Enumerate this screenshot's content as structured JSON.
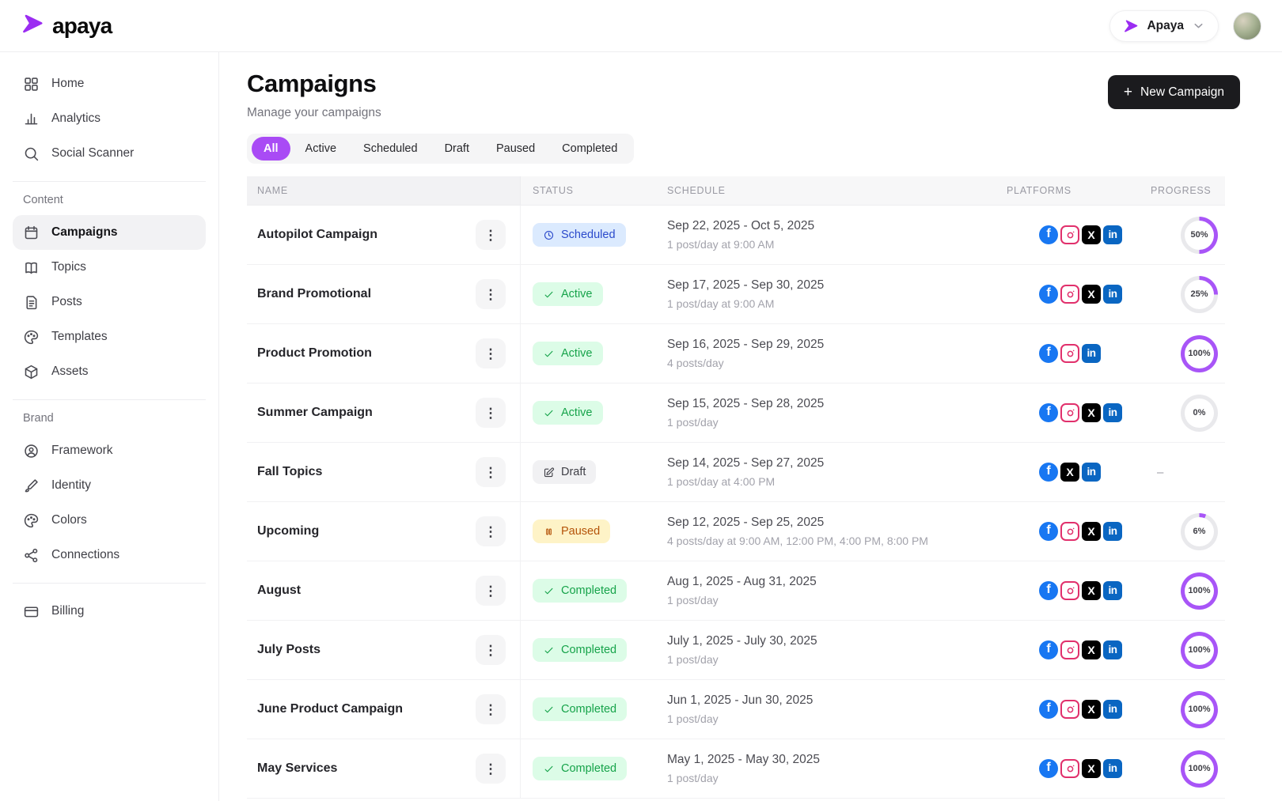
{
  "app": {
    "name": "apaya",
    "logo_color": "#9b2df2",
    "ring_color": "#a855f7",
    "ring_track": "#e9e9ec"
  },
  "topbar": {
    "org": {
      "label": "Apaya"
    }
  },
  "sidebar": {
    "groups": [
      {
        "label": "",
        "items": [
          {
            "icon": "home-icon",
            "label": "Home"
          },
          {
            "icon": "analytics-icon",
            "label": "Analytics"
          },
          {
            "icon": "search-icon",
            "label": "Social Scanner"
          }
        ]
      },
      {
        "label": "Content",
        "items": [
          {
            "icon": "calendar-icon",
            "label": "Campaigns",
            "active": true
          },
          {
            "icon": "book-icon",
            "label": "Topics"
          },
          {
            "icon": "document-icon",
            "label": "Posts"
          },
          {
            "icon": "palette-icon",
            "label": "Templates"
          },
          {
            "icon": "box-icon",
            "label": "Assets"
          }
        ]
      },
      {
        "label": "Brand",
        "items": [
          {
            "icon": "user-circle-icon",
            "label": "Framework"
          },
          {
            "icon": "brush-icon",
            "label": "Identity"
          },
          {
            "icon": "palette-icon",
            "label": "Colors"
          },
          {
            "icon": "share-icon",
            "label": "Connections"
          }
        ]
      },
      {
        "label": "",
        "items": [
          {
            "icon": "credit-card-icon",
            "label": "Billing"
          }
        ]
      }
    ]
  },
  "page": {
    "title": "Campaigns",
    "subtitle": "Manage your campaigns",
    "new_campaign_label": "New Campaign"
  },
  "filters": {
    "tabs": [
      "All",
      "Active",
      "Scheduled",
      "Draft",
      "Paused",
      "Completed"
    ],
    "active": "All",
    "active_bg": "#a94bf5"
  },
  "table": {
    "columns": [
      "NAME",
      "STATUS",
      "SCHEDULE",
      "PLATFORMS",
      "PROGRESS"
    ],
    "progress_empty": "–",
    "status_styles": {
      "scheduled": {
        "label": "Scheduled",
        "bg": "#dbeafe",
        "fg": "#2b4acb",
        "icon": "clock-icon"
      },
      "active": {
        "label": "Active",
        "bg": "#dcfce7",
        "fg": "#16a34a",
        "icon": "check-icon"
      },
      "draft": {
        "label": "Draft",
        "bg": "#f1f1f3",
        "fg": "#3f3f46",
        "icon": "pencil-icon"
      },
      "paused": {
        "label": "Paused",
        "bg": "#fef3c7",
        "fg": "#b45309",
        "icon": "pause-icon"
      },
      "completed": {
        "label": "Completed",
        "bg": "#dcfce7",
        "fg": "#16a34a",
        "icon": "check-icon"
      }
    },
    "platform_colors": {
      "facebook": "#1877f2",
      "instagram": "#e1306c",
      "x": "#000000",
      "linkedin": "#0a66c2"
    },
    "rows": [
      {
        "name": "Autopilot Campaign",
        "status": "scheduled",
        "date_range": "Sep 22, 2025 - Oct 5, 2025",
        "frequency": "1 post/day at 9:00 AM",
        "platforms": [
          "facebook",
          "instagram",
          "x",
          "linkedin"
        ],
        "progress": 50
      },
      {
        "name": "Brand Promotional",
        "status": "active",
        "date_range": "Sep 17, 2025 - Sep 30, 2025",
        "frequency": "1 post/day at 9:00 AM",
        "platforms": [
          "facebook",
          "instagram",
          "x",
          "linkedin"
        ],
        "progress": 25
      },
      {
        "name": "Product Promotion",
        "status": "active",
        "date_range": "Sep 16, 2025 - Sep 29, 2025",
        "frequency": "4 posts/day",
        "platforms": [
          "facebook",
          "instagram",
          "linkedin"
        ],
        "progress": 100
      },
      {
        "name": "Summer Campaign",
        "status": "active",
        "date_range": "Sep 15, 2025 - Sep 28, 2025",
        "frequency": "1 post/day",
        "platforms": [
          "facebook",
          "instagram",
          "x",
          "linkedin"
        ],
        "progress": 0
      },
      {
        "name": "Fall Topics",
        "status": "draft",
        "date_range": "Sep 14, 2025 - Sep 27, 2025",
        "frequency": "1 post/day at 4:00 PM",
        "platforms": [
          "facebook",
          "x",
          "linkedin"
        ],
        "progress": null
      },
      {
        "name": "Upcoming",
        "status": "paused",
        "date_range": "Sep 12, 2025 - Sep 25, 2025",
        "frequency": "4 posts/day at 9:00 AM, 12:00 PM, 4:00 PM, 8:00 PM",
        "platforms": [
          "facebook",
          "instagram",
          "x",
          "linkedin"
        ],
        "progress": 6
      },
      {
        "name": "August",
        "status": "completed",
        "date_range": "Aug 1, 2025 - Aug 31, 2025",
        "frequency": "1 post/day",
        "platforms": [
          "facebook",
          "instagram",
          "x",
          "linkedin"
        ],
        "progress": 100
      },
      {
        "name": "July Posts",
        "status": "completed",
        "date_range": "July 1, 2025 - July 30, 2025",
        "frequency": "1 post/day",
        "platforms": [
          "facebook",
          "instagram",
          "x",
          "linkedin"
        ],
        "progress": 100
      },
      {
        "name": "June Product Campaign",
        "status": "completed",
        "date_range": "Jun 1, 2025 - Jun 30, 2025",
        "frequency": "1 post/day",
        "platforms": [
          "facebook",
          "instagram",
          "x",
          "linkedin"
        ],
        "progress": 100
      },
      {
        "name": "May Services",
        "status": "completed",
        "date_range": "May 1, 2025 - May 30, 2025",
        "frequency": "1 post/day",
        "platforms": [
          "facebook",
          "instagram",
          "x",
          "linkedin"
        ],
        "progress": 100
      }
    ]
  }
}
